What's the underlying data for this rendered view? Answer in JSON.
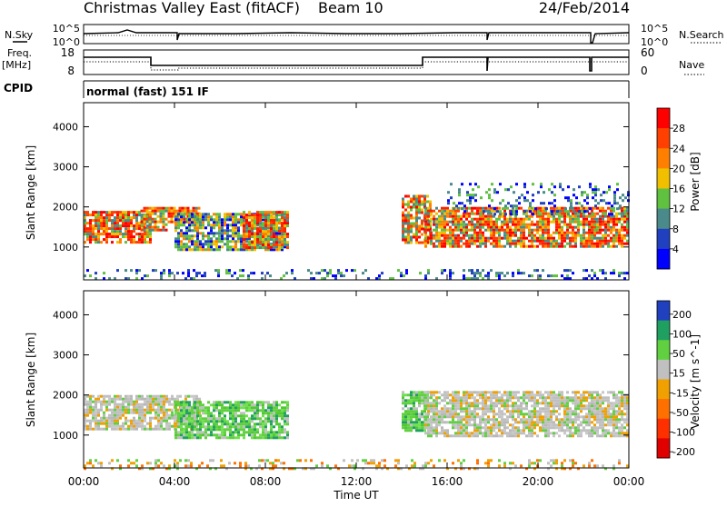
{
  "header": {
    "title": "Christmas Valley East (fitACF)",
    "beam": "Beam 10",
    "date": "24/Feb/2014"
  },
  "noise_panel": {
    "left_label": "N.Sky",
    "right_label": "N.Search",
    "left_ticks": [
      "10^5",
      "10^0"
    ],
    "right_ticks": [
      "10^5",
      "10^0"
    ]
  },
  "freq_panel": {
    "left_label": "Freq.",
    "left_unit": "[MHz]",
    "right_label": "Nave",
    "left_ticks": [
      "18",
      "8"
    ],
    "right_ticks": [
      "60",
      "0"
    ]
  },
  "cpid": {
    "label": "CPID",
    "mode": "normal (fast) 151 IF"
  },
  "chart_data": [
    {
      "type": "heatmap",
      "name": "power",
      "ylabel": "Slant Range [km]",
      "xlabel": "",
      "ylim": [
        180,
        4600
      ],
      "yticks": [
        1000,
        2000,
        3000,
        4000
      ],
      "colorbar": {
        "label": "Power [dB]",
        "ticks": [
          "4",
          "8",
          "12",
          "16",
          "20",
          "24",
          "28"
        ],
        "colors": [
          "#0000ff",
          "#2040c0",
          "#4a8a8a",
          "#60c040",
          "#f0c000",
          "#ff8000",
          "#ff4000",
          "#ff0000"
        ]
      },
      "echo_regions": [
        {
          "t_start": 0.0,
          "t_end": 2.9,
          "range_start": 1150,
          "range_end": 1900,
          "level": "strong"
        },
        {
          "t_start": 2.5,
          "t_end": 3.7,
          "range_start": 1400,
          "range_end": 2000,
          "level": "strong"
        },
        {
          "t_start": 3.7,
          "t_end": 5.1,
          "range_start": 1600,
          "range_end": 2000,
          "level": "strong"
        },
        {
          "t_start": 4.0,
          "t_end": 8.9,
          "range_start": 900,
          "range_end": 1850,
          "level": "medium"
        },
        {
          "t_start": 7.0,
          "t_end": 9.0,
          "range_start": 1000,
          "range_end": 1900,
          "level": "strong"
        },
        {
          "t_start": 14.0,
          "t_end": 15.3,
          "range_start": 1100,
          "range_end": 2300,
          "level": "strong"
        },
        {
          "t_start": 15.0,
          "t_end": 24.0,
          "range_start": 1000,
          "range_end": 2000,
          "level": "strong"
        },
        {
          "t_start": 16.0,
          "t_end": 24.0,
          "range_start": 1800,
          "range_end": 2600,
          "level": "weak"
        },
        {
          "t_start": 0.0,
          "t_end": 24.0,
          "range_start": 180,
          "range_end": 450,
          "level": "weak"
        }
      ]
    },
    {
      "type": "heatmap",
      "name": "velocity",
      "ylabel": "Slant Range [km]",
      "xlabel": "Time UT",
      "ylim": [
        180,
        4600
      ],
      "yticks": [
        1000,
        2000,
        3000,
        4000
      ],
      "xticks": [
        "00:00",
        "04:00",
        "08:00",
        "12:00",
        "16:00",
        "20:00",
        "00:00"
      ],
      "xlim_hours": [
        0,
        24
      ],
      "colorbar": {
        "label": "Velocity [m s^-1]",
        "ticks": [
          "200",
          "100",
          "50",
          "15",
          "-15",
          "-50",
          "-100",
          "-200"
        ],
        "colors": [
          "#2040c0",
          "#20a060",
          "#60d040",
          "#c0c0c0",
          "#f0a000",
          "#ff7000",
          "#ff3000",
          "#e00000"
        ]
      },
      "echo_regions": [
        {
          "t_start": 0.0,
          "t_end": 5.1,
          "range_start": 1150,
          "range_end": 2000,
          "level": "gray"
        },
        {
          "t_start": 4.0,
          "t_end": 9.0,
          "range_start": 900,
          "range_end": 1850,
          "level": "green"
        },
        {
          "t_start": 14.0,
          "t_end": 15.2,
          "range_start": 1100,
          "range_end": 2100,
          "level": "green"
        },
        {
          "t_start": 15.0,
          "t_end": 24.0,
          "range_start": 1000,
          "range_end": 2100,
          "level": "gray"
        },
        {
          "t_start": 0.0,
          "t_end": 24.0,
          "range_start": 180,
          "range_end": 400,
          "level": "orange"
        }
      ]
    }
  ]
}
